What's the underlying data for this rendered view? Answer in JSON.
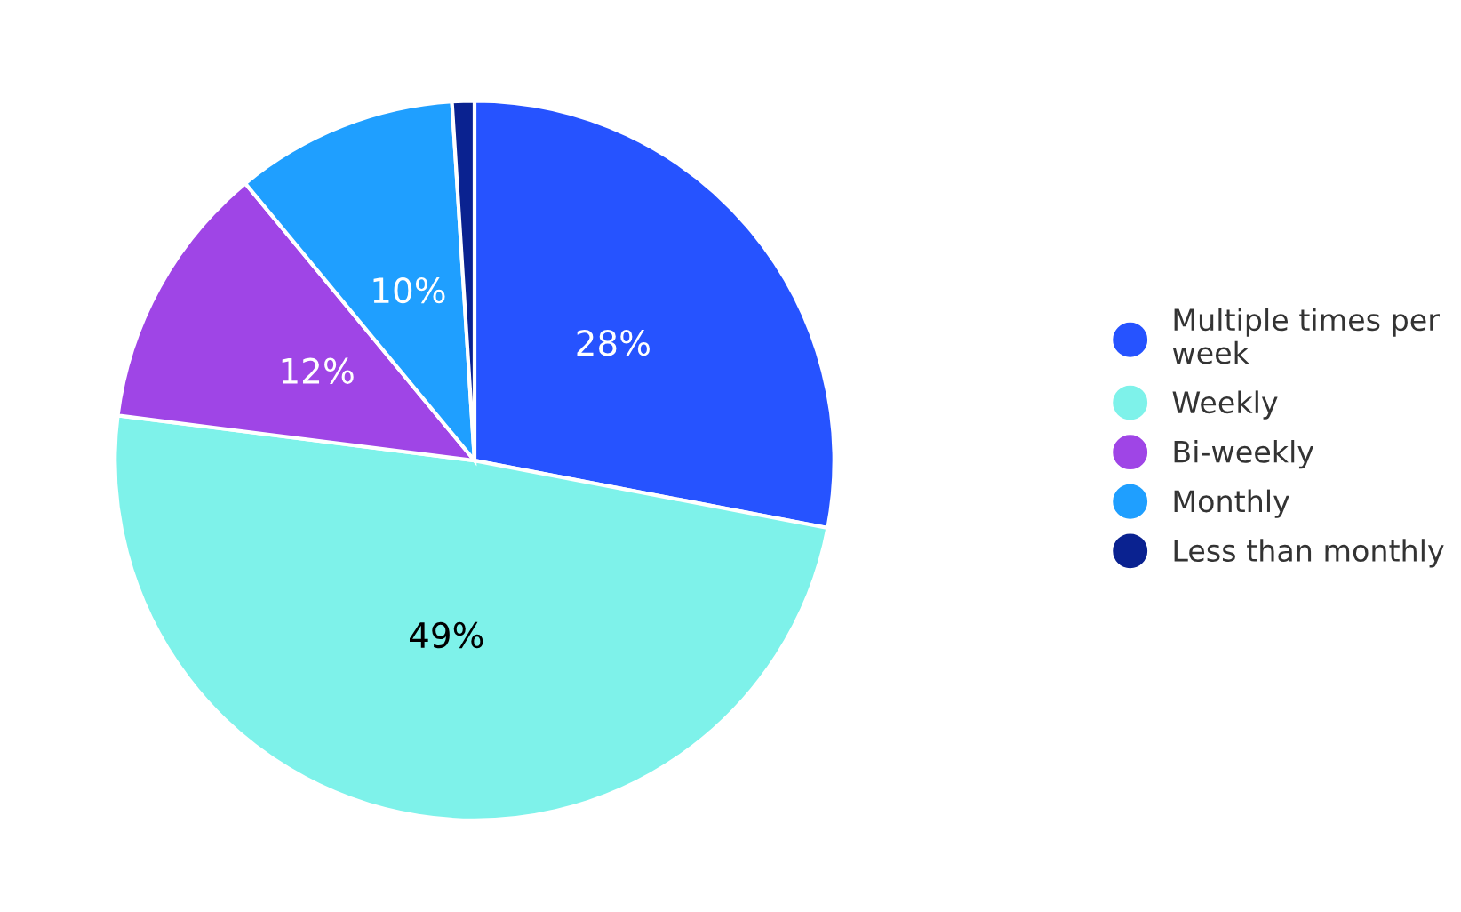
{
  "chart_data": {
    "type": "pie",
    "categories": [
      "Multiple times per\nweek",
      "Weekly",
      "Bi-weekly",
      "Monthly",
      "Less than monthly"
    ],
    "values": [
      28,
      49,
      12,
      10,
      1
    ],
    "colors": [
      "#2653ff",
      "#7ef2ea",
      "#9f45e6",
      "#1f9fff",
      "#0a2290"
    ],
    "value_labels": [
      "28%",
      "49%",
      "12%",
      "10%",
      null
    ],
    "legend": "right"
  }
}
